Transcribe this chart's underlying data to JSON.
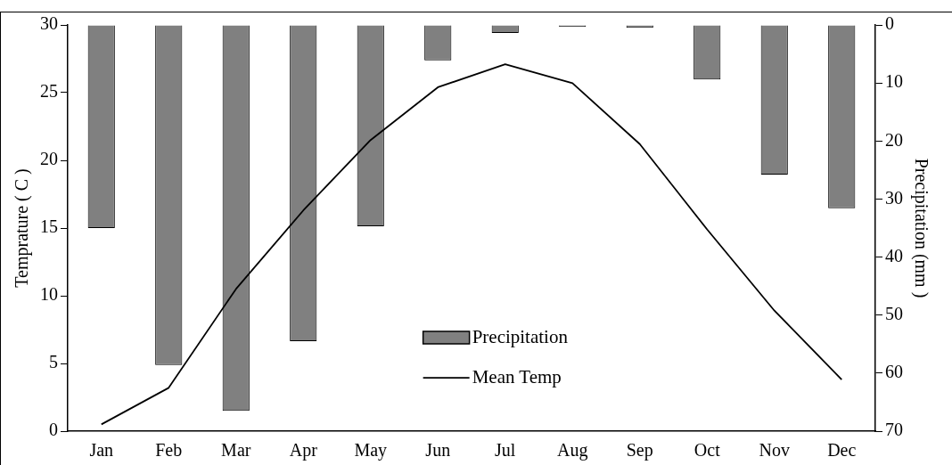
{
  "chart_data": {
    "type": "bar",
    "categories": [
      "Jan",
      "Feb",
      "Mar",
      "Apr",
      "May",
      "Jun",
      "Jul",
      "Aug",
      "Sep",
      "Oct",
      "Nov",
      "Dec"
    ],
    "series": [
      {
        "name": "Precipitation",
        "axis": "y2",
        "color": "#808080",
        "values": [
          35,
          58.6,
          66.5,
          54.5,
          34.7,
          6.1,
          1.4,
          0.3,
          0.5,
          9.4,
          25.8,
          31.6
        ]
      },
      {
        "name": "Mean Temp",
        "type": "line",
        "color": "#000000",
        "values": [
          0.5,
          3.2,
          10.5,
          16.3,
          21.5,
          25.4,
          27.1,
          25.7,
          21.2,
          14.9,
          8.9,
          3.8
        ]
      }
    ],
    "ylabel": "Temprature ( C )",
    "y2label": "Precipitation (mm )",
    "ylim": [
      0,
      30
    ],
    "yticks": [
      0,
      5,
      10,
      15,
      20,
      25,
      30
    ],
    "y2lim": [
      70,
      0
    ],
    "y2ticks": [
      0,
      10,
      20,
      30,
      40,
      50,
      60,
      70
    ],
    "legend": "bottom",
    "grid": false,
    "marker": "none",
    "line_style": "solid"
  }
}
